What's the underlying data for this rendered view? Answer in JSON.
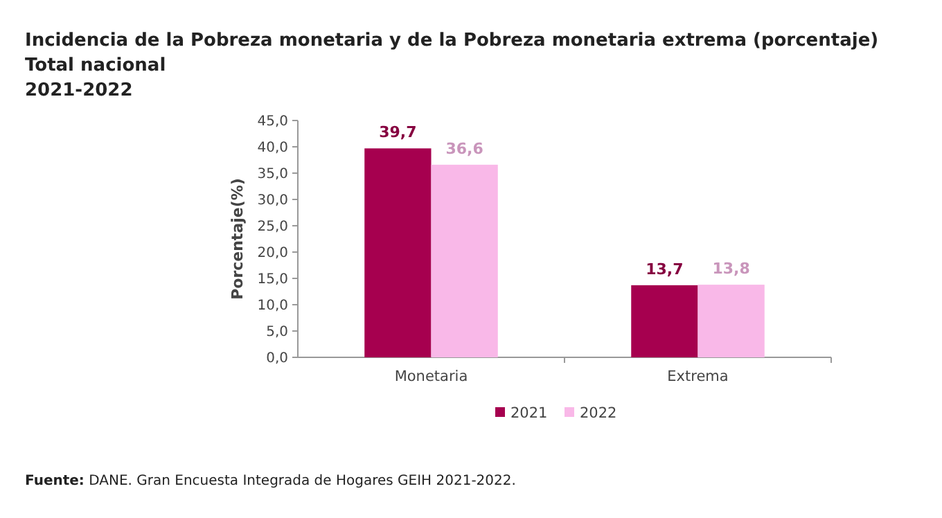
{
  "chart_data": {
    "type": "bar",
    "title": "Incidencia de la Pobreza monetaria y de la Pobreza monetaria extrema (porcentaje)",
    "subtitle": "Total nacional\n2021-2022",
    "ylabel": "Porcentaje(%)",
    "categories": [
      "Monetaria",
      "Extrema"
    ],
    "series": [
      {
        "name": "2021",
        "color": "#a6004f",
        "values": [
          39.7,
          13.7
        ],
        "value_labels": [
          "39,7",
          "13,7"
        ]
      },
      {
        "name": "2022",
        "color": "#f9b8e8",
        "values": [
          36.6,
          13.8
        ],
        "value_labels": [
          "36,6",
          "13,8"
        ]
      }
    ],
    "ylim": [
      0,
      45
    ],
    "yticks": [
      {
        "value": 0,
        "label": "0,0"
      },
      {
        "value": 5,
        "label": "5,0"
      },
      {
        "value": 10,
        "label": "10,0"
      },
      {
        "value": 15,
        "label": "15,0"
      },
      {
        "value": 20,
        "label": "20,0"
      },
      {
        "value": 25,
        "label": "25,0"
      },
      {
        "value": 30,
        "label": "30,0"
      },
      {
        "value": 35,
        "label": "35,0"
      },
      {
        "value": 40,
        "label": "40,0"
      },
      {
        "value": 45,
        "label": "45,0"
      }
    ],
    "grid": false,
    "legend": "bottom",
    "annotations": [
      "Fuente: DANE. Gran Encuesta Integrada de Hogares GEIH 2021-2022."
    ]
  }
}
